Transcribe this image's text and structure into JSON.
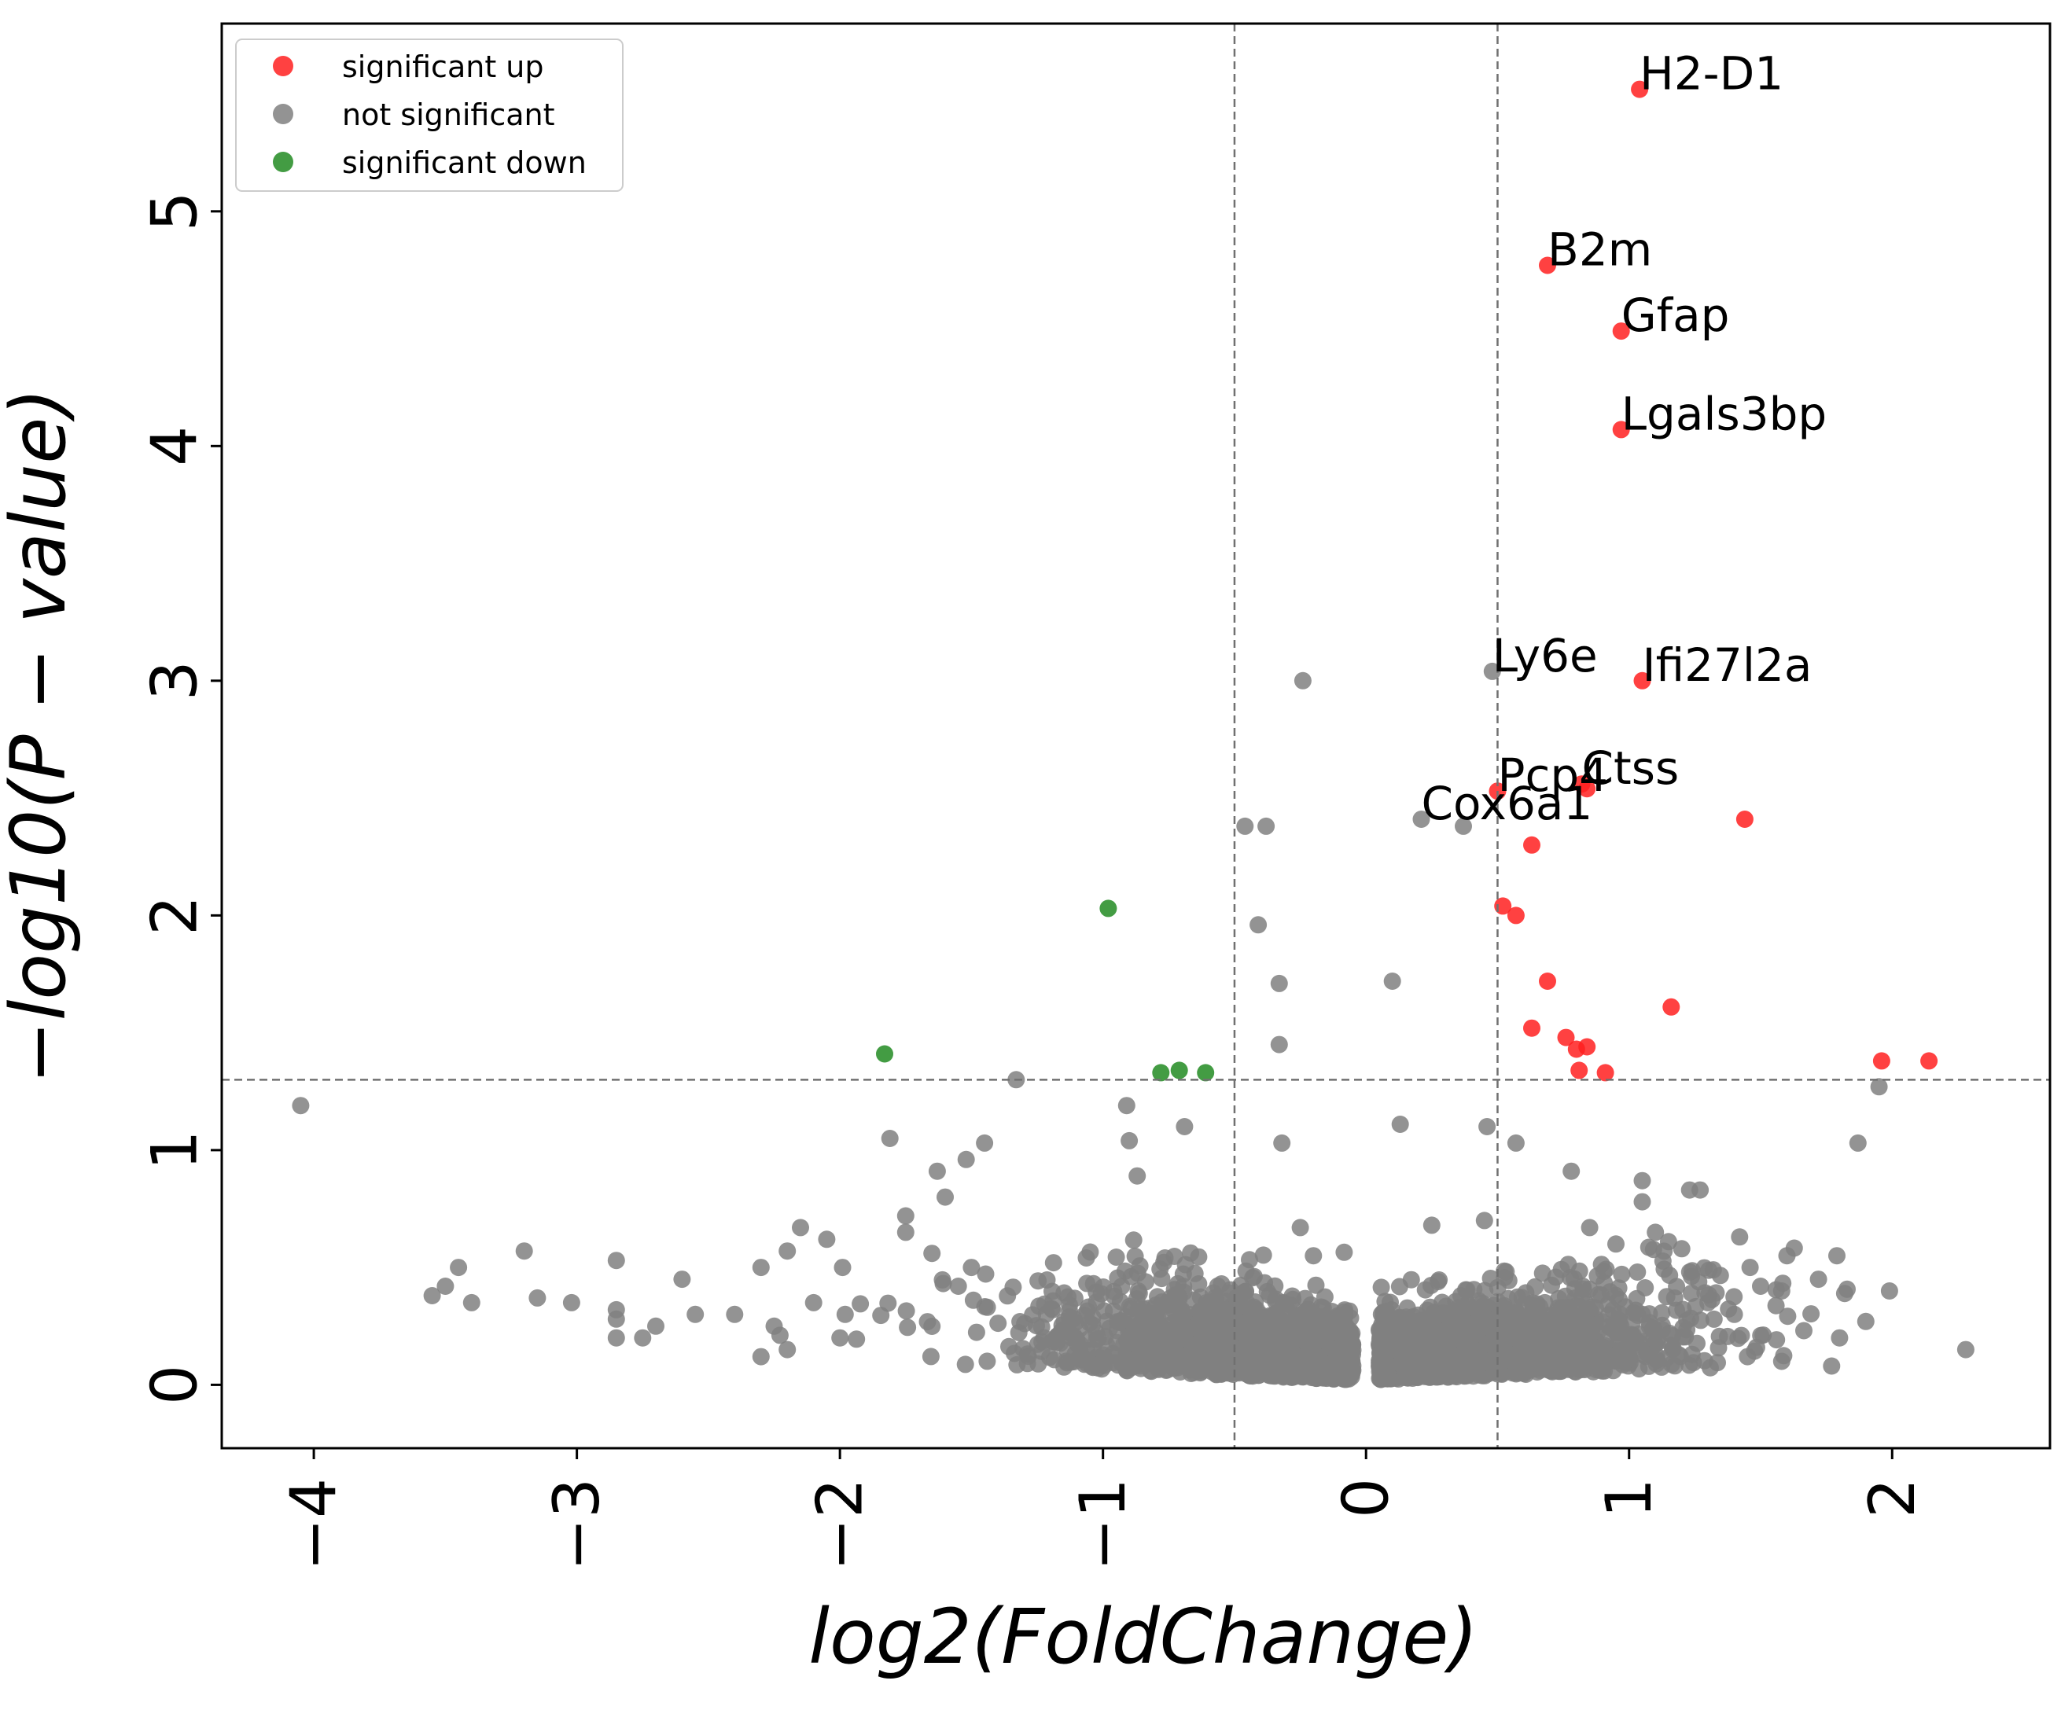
{
  "chart_data": {
    "type": "scatter",
    "xlabel": "log2(FoldChange)",
    "ylabel": "−log10(P − value)",
    "xlim": [
      -4.35,
      2.6
    ],
    "ylim": [
      -0.27,
      5.8
    ],
    "x_ticks": [
      -4,
      -3,
      -2,
      -1,
      0,
      1,
      2
    ],
    "x_tick_labels": [
      "−4",
      "−3",
      "−2",
      "−1",
      "0",
      "1",
      "2"
    ],
    "y_ticks": [
      0,
      1,
      2,
      3,
      4,
      5
    ],
    "y_tick_labels": [
      "0",
      "1",
      "2",
      "3",
      "4",
      "5"
    ],
    "grid": false,
    "threshold_lines": {
      "x": [
        -0.5,
        0.5
      ],
      "y": [
        1.3
      ]
    },
    "legend": {
      "placement": "top-left",
      "entries": [
        {
          "label": "significant up",
          "color": "#ff2020"
        },
        {
          "label": "not significant",
          "color": "#808080"
        },
        {
          "label": "significant down",
          "color": "#228b22"
        }
      ]
    },
    "series": [
      {
        "name": "significant up",
        "color": "#ff2020",
        "points": [
          [
            1.04,
            5.52
          ],
          [
            0.69,
            4.77
          ],
          [
            0.97,
            4.49
          ],
          [
            0.97,
            4.07
          ],
          [
            1.05,
            3.0
          ],
          [
            0.5,
            2.53
          ],
          [
            0.82,
            2.56
          ],
          [
            0.84,
            2.54
          ],
          [
            1.44,
            2.41
          ],
          [
            0.63,
            2.3
          ],
          [
            0.52,
            2.04
          ],
          [
            0.57,
            2.0
          ],
          [
            0.69,
            1.72
          ],
          [
            1.16,
            1.61
          ],
          [
            0.63,
            1.52
          ],
          [
            0.76,
            1.48
          ],
          [
            0.8,
            1.43
          ],
          [
            0.84,
            1.44
          ],
          [
            0.81,
            1.34
          ],
          [
            0.91,
            1.33
          ],
          [
            1.96,
            1.38
          ],
          [
            2.14,
            1.38
          ]
        ]
      },
      {
        "name": "not significant",
        "color": "#808080",
        "points": [
          [
            0.48,
            3.04
          ],
          [
            -0.24,
            3.0
          ],
          [
            0.21,
            2.41
          ],
          [
            0.37,
            2.38
          ],
          [
            -0.46,
            2.38
          ],
          [
            -0.38,
            2.38
          ],
          [
            -0.41,
            1.96
          ],
          [
            -0.33,
            1.71
          ],
          [
            0.1,
            1.72
          ],
          [
            -0.33,
            1.45
          ],
          [
            -1.33,
            1.3
          ],
          [
            -4.05,
            1.19
          ],
          [
            1.95,
            1.27
          ],
          [
            1.87,
            1.03
          ],
          [
            -0.91,
            1.19
          ],
          [
            -0.69,
            1.1
          ],
          [
            0.13,
            1.11
          ],
          [
            0.46,
            1.1
          ],
          [
            0.57,
            1.03
          ],
          [
            -1.81,
            1.05
          ],
          [
            -1.45,
            1.03
          ],
          [
            -0.9,
            1.04
          ],
          [
            -0.32,
            1.03
          ],
          [
            1.05,
            0.87
          ],
          [
            0.78,
            0.91
          ],
          [
            -1.52,
            0.96
          ],
          [
            -1.63,
            0.91
          ],
          [
            -0.87,
            0.89
          ],
          [
            1.23,
            0.83
          ],
          [
            1.27,
            0.83
          ],
          [
            -3.2,
            0.57
          ],
          [
            -3.45,
            0.5
          ],
          [
            -3.5,
            0.42
          ],
          [
            -3.55,
            0.38
          ],
          [
            -3.4,
            0.35
          ],
          [
            -3.15,
            0.37
          ],
          [
            -3.02,
            0.35
          ],
          [
            -2.85,
            0.53
          ],
          [
            -2.85,
            0.32
          ],
          [
            -2.85,
            0.28
          ],
          [
            -2.85,
            0.2
          ],
          [
            -2.75,
            0.2
          ],
          [
            -2.7,
            0.25
          ],
          [
            -2.6,
            0.45
          ],
          [
            -2.55,
            0.3
          ],
          [
            -2.4,
            0.3
          ],
          [
            -2.3,
            0.5
          ],
          [
            -2.25,
            0.25
          ],
          [
            -2.2,
            0.57
          ],
          [
            -2.15,
            0.67
          ],
          [
            -2.05,
            0.62
          ],
          [
            -1.99,
            0.5
          ],
          [
            -1.98,
            0.3
          ],
          [
            -2.1,
            0.35
          ],
          [
            -1.75,
            0.72
          ],
          [
            -1.75,
            0.65
          ],
          [
            -1.65,
            0.56
          ],
          [
            -1.6,
            0.8
          ],
          [
            -1.55,
            0.42
          ],
          [
            -1.5,
            0.5
          ],
          [
            -2.3,
            0.12
          ],
          [
            -2.2,
            0.15
          ],
          [
            -2.0,
            0.2
          ],
          [
            2.28,
            0.15
          ],
          [
            1.99,
            0.4
          ],
          [
            1.9,
            0.27
          ],
          [
            1.79,
            0.55
          ],
          [
            1.72,
            0.45
          ],
          [
            1.6,
            0.55
          ],
          [
            1.58,
            0.4
          ],
          [
            1.5,
            0.42
          ],
          [
            1.46,
            0.5
          ],
          [
            1.42,
            0.63
          ],
          [
            1.32,
            0.49
          ],
          [
            1.3,
            0.35
          ],
          [
            1.8,
            0.2
          ],
          [
            1.77,
            0.08
          ],
          [
            1.58,
            0.1
          ],
          [
            1.45,
            0.12
          ],
          [
            1.4,
            0.3
          ],
          [
            1.2,
            0.58
          ],
          [
            1.15,
            0.61
          ],
          [
            1.1,
            0.65
          ],
          [
            1.05,
            0.78
          ],
          [
            0.95,
            0.6
          ],
          [
            0.85,
            0.67
          ],
          [
            -0.2,
            0.55
          ],
          [
            -0.25,
            0.67
          ],
          [
            0.25,
            0.68
          ],
          [
            0.45,
            0.7
          ]
        ]
      },
      {
        "name": "significant down",
        "color": "#228b22",
        "points": [
          [
            -0.98,
            2.03
          ],
          [
            -1.83,
            1.41
          ],
          [
            -0.78,
            1.33
          ],
          [
            -0.71,
            1.34
          ],
          [
            -0.61,
            1.33
          ]
        ]
      }
    ],
    "annotations": [
      {
        "text": "H2-D1",
        "x": 1.04,
        "y": 5.52
      },
      {
        "text": "B2m",
        "x": 0.69,
        "y": 4.77
      },
      {
        "text": "Gfap",
        "x": 0.97,
        "y": 4.49
      },
      {
        "text": "Lgals3bp",
        "x": 0.97,
        "y": 4.07
      },
      {
        "text": "Ly6e",
        "x": 0.48,
        "y": 3.04
      },
      {
        "text": "Ifi27l2a",
        "x": 1.05,
        "y": 3.0
      },
      {
        "text": "Ctss",
        "x": 0.82,
        "y": 2.56
      },
      {
        "text": "Pcp4",
        "x": 0.5,
        "y": 2.53
      },
      {
        "text": "Cox6a1",
        "x": 0.21,
        "y": 2.41
      }
    ]
  }
}
